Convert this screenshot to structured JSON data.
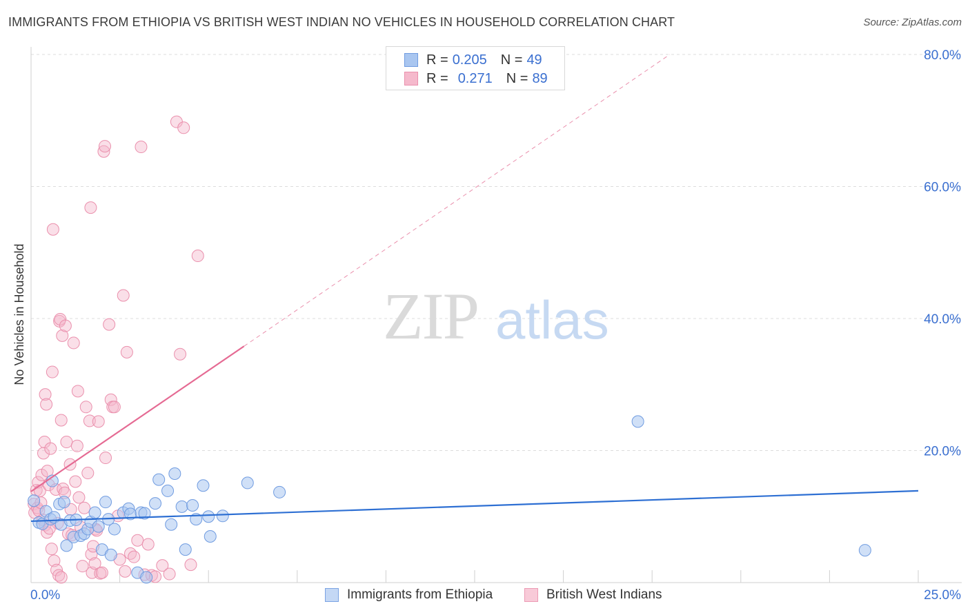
{
  "header": {
    "title": "IMMIGRANTS FROM ETHIOPIA VS BRITISH WEST INDIAN NO VEHICLES IN HOUSEHOLD CORRELATION CHART",
    "source": "Source: ZipAtlas.com"
  },
  "watermark": {
    "zip": "ZIP",
    "atlas": "atlas"
  },
  "legend": {
    "r_label": "R =",
    "n_label": "N =",
    "rows": [
      {
        "r": "0.205",
        "n": "49"
      },
      {
        "r": "0.271",
        "n": "89"
      }
    ]
  },
  "colors": {
    "ethiopia_fill": "#a9c6f0",
    "ethiopia_stroke": "#6f9be0",
    "ethiopia_line": "#2d6fd3",
    "bwi_fill": "#f5b9cc",
    "bwi_stroke": "#ea8fac",
    "bwi_line": "#e56a93",
    "axis_label": "#3a6fd0",
    "grid": "#dcdcdc"
  },
  "chart_data": {
    "type": "scatter",
    "title": "IMMIGRANTS FROM ETHIOPIA VS BRITISH WEST INDIAN NO VEHICLES IN HOUSEHOLD CORRELATION CHART",
    "xlabel": "",
    "ylabel": "No Vehicles in Household",
    "xlim": [
      0,
      25
    ],
    "ylim": [
      0,
      80
    ],
    "x_tick_labels": [
      "0.0%",
      "25.0%"
    ],
    "y_ticks": [
      20,
      40,
      60,
      80
    ],
    "y_tick_labels": [
      "20.0%",
      "40.0%",
      "60.0%",
      "80.0%"
    ],
    "legend_placement": "top-center",
    "grid": true,
    "series": [
      {
        "name": "Immigrants from Ethiopia",
        "r": 0.205,
        "n": 49,
        "trend": {
          "x": [
            0,
            25
          ],
          "y": [
            9.3,
            13.9
          ]
        },
        "points": [
          [
            0.22,
            9.1
          ],
          [
            0.32,
            8.9
          ],
          [
            0.42,
            10.8
          ],
          [
            0.55,
            9.6
          ],
          [
            0.6,
            15.4
          ],
          [
            0.65,
            9.9
          ],
          [
            0.8,
            11.9
          ],
          [
            0.85,
            8.8
          ],
          [
            0.93,
            12.2
          ],
          [
            1.0,
            5.6
          ],
          [
            1.1,
            9.4
          ],
          [
            1.2,
            6.9
          ],
          [
            1.27,
            9.5
          ],
          [
            1.4,
            7.1
          ],
          [
            1.5,
            7.4
          ],
          [
            1.6,
            8.1
          ],
          [
            1.68,
            9.2
          ],
          [
            1.8,
            10.6
          ],
          [
            1.9,
            8.5
          ],
          [
            2.0,
            5.0
          ],
          [
            2.1,
            12.2
          ],
          [
            2.18,
            9.6
          ],
          [
            2.25,
            4.2
          ],
          [
            2.35,
            8.1
          ],
          [
            2.6,
            10.6
          ],
          [
            2.75,
            11.2
          ],
          [
            2.8,
            10.4
          ],
          [
            3.0,
            1.5
          ],
          [
            3.1,
            10.6
          ],
          [
            3.2,
            10.5
          ],
          [
            3.25,
            0.8
          ],
          [
            3.5,
            12.0
          ],
          [
            3.6,
            15.6
          ],
          [
            3.85,
            13.9
          ],
          [
            3.95,
            8.8
          ],
          [
            4.05,
            16.5
          ],
          [
            4.25,
            11.5
          ],
          [
            4.35,
            5.0
          ],
          [
            4.55,
            11.7
          ],
          [
            4.65,
            9.6
          ],
          [
            4.85,
            14.7
          ],
          [
            5.0,
            10.0
          ],
          [
            5.05,
            7.0
          ],
          [
            5.4,
            10.1
          ],
          [
            6.1,
            15.1
          ],
          [
            7.0,
            13.7
          ],
          [
            17.1,
            24.4
          ],
          [
            23.5,
            4.9
          ],
          [
            0.08,
            12.4
          ]
        ]
      },
      {
        "name": "British West Indians",
        "r": 0.271,
        "n": 89,
        "trend": {
          "x": [
            0,
            6.0
          ],
          "y": [
            13.8,
            35.8
          ]
        },
        "trend_extension": {
          "x": [
            6.0,
            18.0
          ],
          "y": [
            35.8,
            80.0
          ]
        },
        "points": [
          [
            0.08,
            11.9
          ],
          [
            0.1,
            10.6
          ],
          [
            0.15,
            14.0
          ],
          [
            0.2,
            15.2
          ],
          [
            0.25,
            13.9
          ],
          [
            0.3,
            16.3
          ],
          [
            0.35,
            19.6
          ],
          [
            0.38,
            21.3
          ],
          [
            0.4,
            28.5
          ],
          [
            0.43,
            27.0
          ],
          [
            0.46,
            16.9
          ],
          [
            0.5,
            14.8
          ],
          [
            0.55,
            20.3
          ],
          [
            0.6,
            31.9
          ],
          [
            0.62,
            53.5
          ],
          [
            0.7,
            14.1
          ],
          [
            0.75,
            9.0
          ],
          [
            0.8,
            39.6
          ],
          [
            0.82,
            39.9
          ],
          [
            0.85,
            24.6
          ],
          [
            0.88,
            37.4
          ],
          [
            0.9,
            14.2
          ],
          [
            0.95,
            13.6
          ],
          [
            0.97,
            38.9
          ],
          [
            1.0,
            21.3
          ],
          [
            1.05,
            7.4
          ],
          [
            1.1,
            17.9
          ],
          [
            1.12,
            11.1
          ],
          [
            1.15,
            7.2
          ],
          [
            1.2,
            36.3
          ],
          [
            1.25,
            15.3
          ],
          [
            1.3,
            20.7
          ],
          [
            1.32,
            29.0
          ],
          [
            1.35,
            12.9
          ],
          [
            1.4,
            8.4
          ],
          [
            1.45,
            2.5
          ],
          [
            1.5,
            11.3
          ],
          [
            1.55,
            26.6
          ],
          [
            1.6,
            16.6
          ],
          [
            1.65,
            24.5
          ],
          [
            1.68,
            56.8
          ],
          [
            1.7,
            4.3
          ],
          [
            1.72,
            1.5
          ],
          [
            1.75,
            5.5
          ],
          [
            1.8,
            2.9
          ],
          [
            1.82,
            8.1
          ],
          [
            1.85,
            7.9
          ],
          [
            1.9,
            24.4
          ],
          [
            1.95,
            1.4
          ],
          [
            2.0,
            1.5
          ],
          [
            2.05,
            65.3
          ],
          [
            2.08,
            66.1
          ],
          [
            2.1,
            18.9
          ],
          [
            2.2,
            39.1
          ],
          [
            2.25,
            27.7
          ],
          [
            2.3,
            26.6
          ],
          [
            2.35,
            26.6
          ],
          [
            2.45,
            10.1
          ],
          [
            2.5,
            3.5
          ],
          [
            2.6,
            43.5
          ],
          [
            2.65,
            1.7
          ],
          [
            2.7,
            34.9
          ],
          [
            2.8,
            4.4
          ],
          [
            2.9,
            3.9
          ],
          [
            3.0,
            6.4
          ],
          [
            3.1,
            66.0
          ],
          [
            3.2,
            1.2
          ],
          [
            3.3,
            5.8
          ],
          [
            3.4,
            1.1
          ],
          [
            3.5,
            0.9
          ],
          [
            3.7,
            2.6
          ],
          [
            3.9,
            1.3
          ],
          [
            4.1,
            69.8
          ],
          [
            4.2,
            34.6
          ],
          [
            4.3,
            68.9
          ],
          [
            4.5,
            2.7
          ],
          [
            4.7,
            49.5
          ],
          [
            0.18,
            11.3
          ],
          [
            0.22,
            10.9
          ],
          [
            0.28,
            12.1
          ],
          [
            0.33,
            9.5
          ],
          [
            0.4,
            8.7
          ],
          [
            0.45,
            7.6
          ],
          [
            0.52,
            8.2
          ],
          [
            0.58,
            5.1
          ],
          [
            0.65,
            3.3
          ],
          [
            0.72,
            1.9
          ],
          [
            0.78,
            1.1
          ],
          [
            0.85,
            0.8
          ]
        ]
      }
    ]
  },
  "bottom_legend": {
    "items": [
      "Immigrants from Ethiopia",
      "British West Indians"
    ]
  }
}
